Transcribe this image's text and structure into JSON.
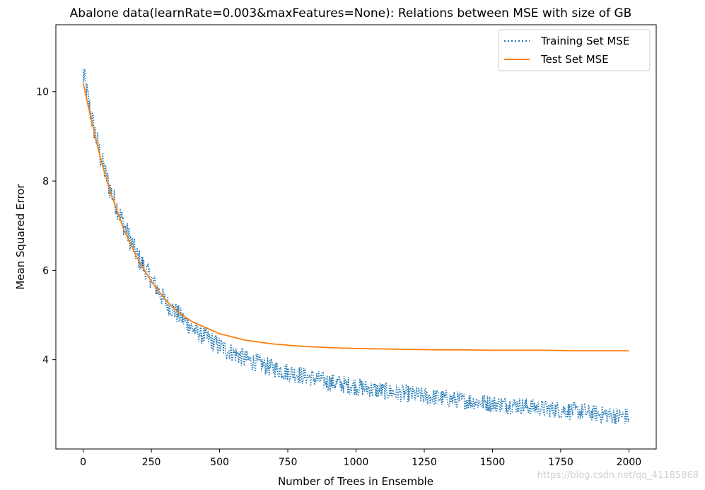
{
  "chart_data": {
    "type": "line",
    "title": "Abalone data(learnRate=0.003&maxFeatures=None): Relations between MSE with size of GB",
    "xlabel": "Number of Trees in Ensemble",
    "ylabel": "Mean Squared Error",
    "xlim": [
      -100,
      2100
    ],
    "ylim": [
      2.0,
      11.5
    ],
    "xticks": [
      0,
      250,
      500,
      750,
      1000,
      1250,
      1500,
      1750,
      2000
    ],
    "yticks": [
      4,
      6,
      8,
      10
    ],
    "grid": false,
    "legend": "top-right",
    "series": [
      {
        "name": "Training Set MSE",
        "style": "dotted",
        "color": "#1f77b4",
        "noise_amplitude": 0.25,
        "x": [
          0,
          25,
          50,
          75,
          100,
          150,
          200,
          250,
          300,
          350,
          400,
          500,
          600,
          700,
          800,
          900,
          1000,
          1100,
          1200,
          1300,
          1400,
          1500,
          1600,
          1700,
          1800,
          1900,
          2000
        ],
        "values": [
          10.4,
          9.6,
          8.9,
          8.3,
          7.8,
          7.0,
          6.3,
          5.8,
          5.3,
          5.0,
          4.7,
          4.3,
          4.0,
          3.8,
          3.65,
          3.5,
          3.4,
          3.3,
          3.22,
          3.15,
          3.08,
          3.02,
          2.97,
          2.9,
          2.85,
          2.78,
          2.72
        ]
      },
      {
        "name": "Test Set MSE",
        "style": "solid",
        "color": "#ff7f0e",
        "x": [
          0,
          25,
          50,
          75,
          100,
          150,
          200,
          250,
          300,
          350,
          400,
          500,
          600,
          700,
          800,
          900,
          1000,
          1100,
          1200,
          1300,
          1400,
          1500,
          1600,
          1700,
          1800,
          1900,
          2000
        ],
        "values": [
          10.2,
          9.5,
          8.85,
          8.25,
          7.75,
          6.9,
          6.25,
          5.75,
          5.35,
          5.05,
          4.85,
          4.58,
          4.43,
          4.35,
          4.3,
          4.27,
          4.25,
          4.24,
          4.23,
          4.22,
          4.22,
          4.21,
          4.21,
          4.21,
          4.2,
          4.2,
          4.2
        ]
      }
    ]
  },
  "watermark": "https://blog.csdn.net/qq_41185868"
}
